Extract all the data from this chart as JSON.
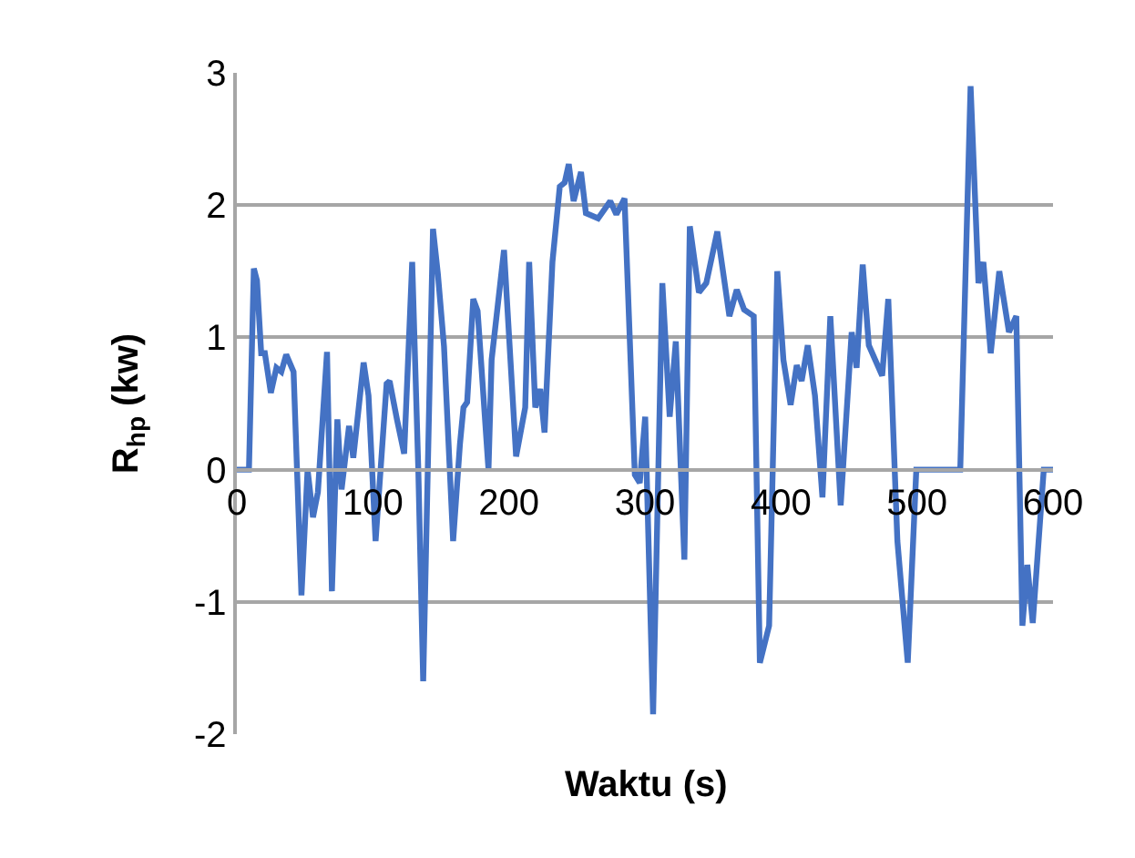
{
  "chart_data": {
    "type": "line",
    "xlabel": "Waktu (s)",
    "ylabel": "R$_{hp}$ (kw)",
    "xlim": [
      0,
      600
    ],
    "xticks": [
      0,
      100,
      200,
      300,
      400,
      500,
      600
    ],
    "ylim": [
      -2,
      3
    ],
    "yticks": [
      -2,
      -1,
      0,
      1,
      2,
      3
    ],
    "grid": "y",
    "marker": "none",
    "line_style": "solid",
    "series": [
      {
        "color": "#4472c4",
        "x": [
          0,
          8.9,
          12.5,
          14.8,
          17.9,
          20.6,
          25,
          29.1,
          32.7,
          36.3,
          41.7,
          47.5,
          52,
          56,
          59.6,
          66.3,
          69.9,
          73.9,
          77,
          82.5,
          85.6,
          93.2,
          96.8,
          102,
          110.1,
          112.3,
          117.7,
          123,
          128.9,
          133.4,
          137,
          144.2,
          147.8,
          152.3,
          159,
          164,
          166.6,
          169.3,
          173.8,
          177,
          185,
          187.3,
          196.4,
          205.3,
          212,
          214.9,
          219.4,
          223,
          226.2,
          232,
          237.4,
          241,
          244,
          247.6,
          253,
          256.6,
          265.6,
          274.5,
          279,
          285,
          292.6,
          296.2,
          300.2,
          306,
          312.8,
          318.2,
          322.7,
          329,
          333,
          339.7,
          345.1,
          353.2,
          362.1,
          367.5,
          372.9,
          380,
          384.5,
          391.3,
          397.3,
          401.8,
          407.1,
          411.6,
          415.2,
          419.7,
          425,
          430.5,
          436.3,
          443.9,
          452,
          455.6,
          460.1,
          464.6,
          474.4,
          478.9,
          485.6,
          493.2,
          499.5,
          531.8,
          539.4,
          545.2,
          548.8,
          554.2,
          560.5,
          567.6,
          573,
          577.5,
          581.1,
          585.1,
          593.2,
          600
        ],
        "values": [
          0,
          0,
          1.52,
          1.43,
          0.88,
          0.88,
          0.58,
          0.77,
          0.74,
          0.87,
          0.74,
          -0.95,
          0,
          -0.36,
          -0.17,
          0.89,
          -0.92,
          0.38,
          -0.15,
          0.33,
          0.09,
          0.81,
          0.56,
          -0.54,
          0.65,
          0.67,
          0.38,
          0.12,
          1.57,
          0,
          -1.6,
          1.82,
          1.48,
          0.93,
          -0.54,
          0.19,
          0.47,
          0.51,
          1.29,
          1.2,
          0,
          0.83,
          1.66,
          0.1,
          0.47,
          1.57,
          0.47,
          0.61,
          0.28,
          1.57,
          2.14,
          2.17,
          2.31,
          2.03,
          2.25,
          1.94,
          1.9,
          2.03,
          1.93,
          2.05,
          -0.04,
          -0.1,
          0.4,
          -1.85,
          1.41,
          0.4,
          0.97,
          -0.68,
          1.84,
          1.34,
          1.41,
          1.8,
          1.16,
          1.36,
          1.21,
          1.16,
          -1.46,
          -1.18,
          1.5,
          0.83,
          0.49,
          0.79,
          0.67,
          0.94,
          0.56,
          -0.21,
          1.16,
          -0.27,
          1.04,
          0.77,
          1.55,
          0.94,
          0.71,
          1.29,
          -0.54,
          -1.46,
          0,
          0,
          2.9,
          1.41,
          1.57,
          0.88,
          1.5,
          1.04,
          1.16,
          -1.18,
          -0.72,
          -1.16,
          0,
          0
        ]
      }
    ]
  }
}
